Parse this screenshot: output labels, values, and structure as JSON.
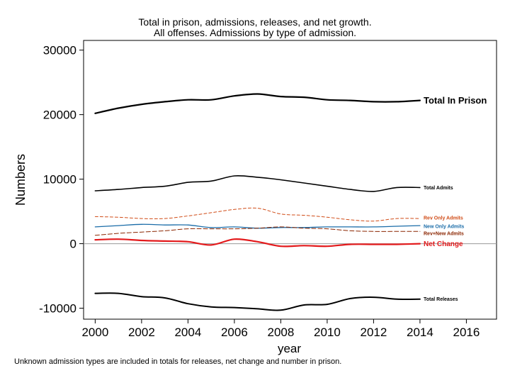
{
  "title": "Total in prison, admissions, releases, and net growth.",
  "subtitle": "All offenses. Admissions by type of admission.",
  "footnote": "Unknown admission types are included in totals for releases, net change and number in prison.",
  "chart_data": {
    "type": "line",
    "xlabel": "year",
    "ylabel": "Numbers",
    "xlim": [
      1999.5,
      2017.3
    ],
    "ylim": [
      -11700,
      31500
    ],
    "xticks": [
      2000,
      2002,
      2004,
      2006,
      2008,
      2010,
      2012,
      2014,
      2016
    ],
    "yticks": [
      -10000,
      0,
      10000,
      20000,
      30000
    ],
    "grid": false,
    "legend": "labels at line ends (right)",
    "zero_line_color": "#999999",
    "series": [
      {
        "name": "Total In Prison",
        "color": "#000000",
        "width": 2.2,
        "dash": "",
        "label_size": 13,
        "label_bold": true,
        "x": [
          2000,
          2001,
          2002,
          2003,
          2004,
          2005,
          2006,
          2007,
          2008,
          2009,
          2010,
          2011,
          2012,
          2013,
          2014
        ],
        "values": [
          20200,
          21000,
          21600,
          22000,
          22300,
          22300,
          22900,
          23200,
          22800,
          22700,
          22300,
          22200,
          22000,
          22000,
          22200
        ]
      },
      {
        "name": "Total Admits",
        "color": "#000000",
        "width": 1.6,
        "dash": "",
        "label_size": 7,
        "label_bold": true,
        "x": [
          2000,
          2001,
          2002,
          2003,
          2004,
          2005,
          2006,
          2007,
          2008,
          2009,
          2010,
          2011,
          2012,
          2013,
          2014
        ],
        "values": [
          8200,
          8400,
          8700,
          8900,
          9500,
          9700,
          10500,
          10300,
          9900,
          9400,
          8900,
          8400,
          8100,
          8700,
          8700
        ]
      },
      {
        "name": "Rev Only Admits",
        "color": "#d04b16",
        "width": 1,
        "dash": "4,3",
        "label_size": 7,
        "label_bold": true,
        "x": [
          2000,
          2001,
          2002,
          2003,
          2004,
          2005,
          2006,
          2007,
          2008,
          2009,
          2010,
          2011,
          2012,
          2013,
          2014
        ],
        "values": [
          4200,
          4100,
          3900,
          3900,
          4300,
          4800,
          5300,
          5500,
          4600,
          4400,
          4100,
          3700,
          3500,
          3900,
          3900
        ]
      },
      {
        "name": "New Only Admits",
        "color": "#1a6ca8",
        "width": 1.3,
        "dash": "",
        "label_size": 7,
        "label_bold": true,
        "x": [
          2000,
          2001,
          2002,
          2003,
          2004,
          2005,
          2006,
          2007,
          2008,
          2009,
          2010,
          2011,
          2012,
          2013,
          2014
        ],
        "values": [
          2600,
          2800,
          3000,
          2900,
          2900,
          2500,
          2600,
          2400,
          2500,
          2500,
          2600,
          2600,
          2600,
          2700,
          2800
        ]
      },
      {
        "name": "Rev+New Admits",
        "color": "#8b2500",
        "width": 1,
        "dash": "6,3",
        "label_size": 7,
        "label_bold": true,
        "x": [
          2000,
          2001,
          2002,
          2003,
          2004,
          2005,
          2006,
          2007,
          2008,
          2009,
          2010,
          2011,
          2012,
          2013,
          2014
        ],
        "values": [
          1300,
          1600,
          1800,
          2000,
          2300,
          2300,
          2300,
          2400,
          2600,
          2400,
          2300,
          2000,
          1900,
          1900,
          1900
        ]
      },
      {
        "name": "Net Change",
        "color": "#e31a1c",
        "width": 2.2,
        "dash": "",
        "label_size": 10,
        "label_bold": true,
        "x": [
          2000,
          2001,
          2002,
          2003,
          2004,
          2005,
          2006,
          2007,
          2008,
          2009,
          2010,
          2011,
          2012,
          2013,
          2014
        ],
        "values": [
          600,
          700,
          500,
          400,
          300,
          -200,
          700,
          300,
          -400,
          -300,
          -400,
          -100,
          -100,
          -100,
          0
        ]
      },
      {
        "name": "Total Releases",
        "color": "#000000",
        "width": 2,
        "dash": "",
        "label_size": 7,
        "label_bold": true,
        "x": [
          2000,
          2001,
          2002,
          2003,
          2004,
          2005,
          2006,
          2007,
          2008,
          2009,
          2010,
          2011,
          2012,
          2013,
          2014
        ],
        "values": [
          -7700,
          -7700,
          -8200,
          -8400,
          -9300,
          -9800,
          -9900,
          -10100,
          -10300,
          -9500,
          -9400,
          -8500,
          -8300,
          -8600,
          -8600
        ]
      }
    ]
  }
}
